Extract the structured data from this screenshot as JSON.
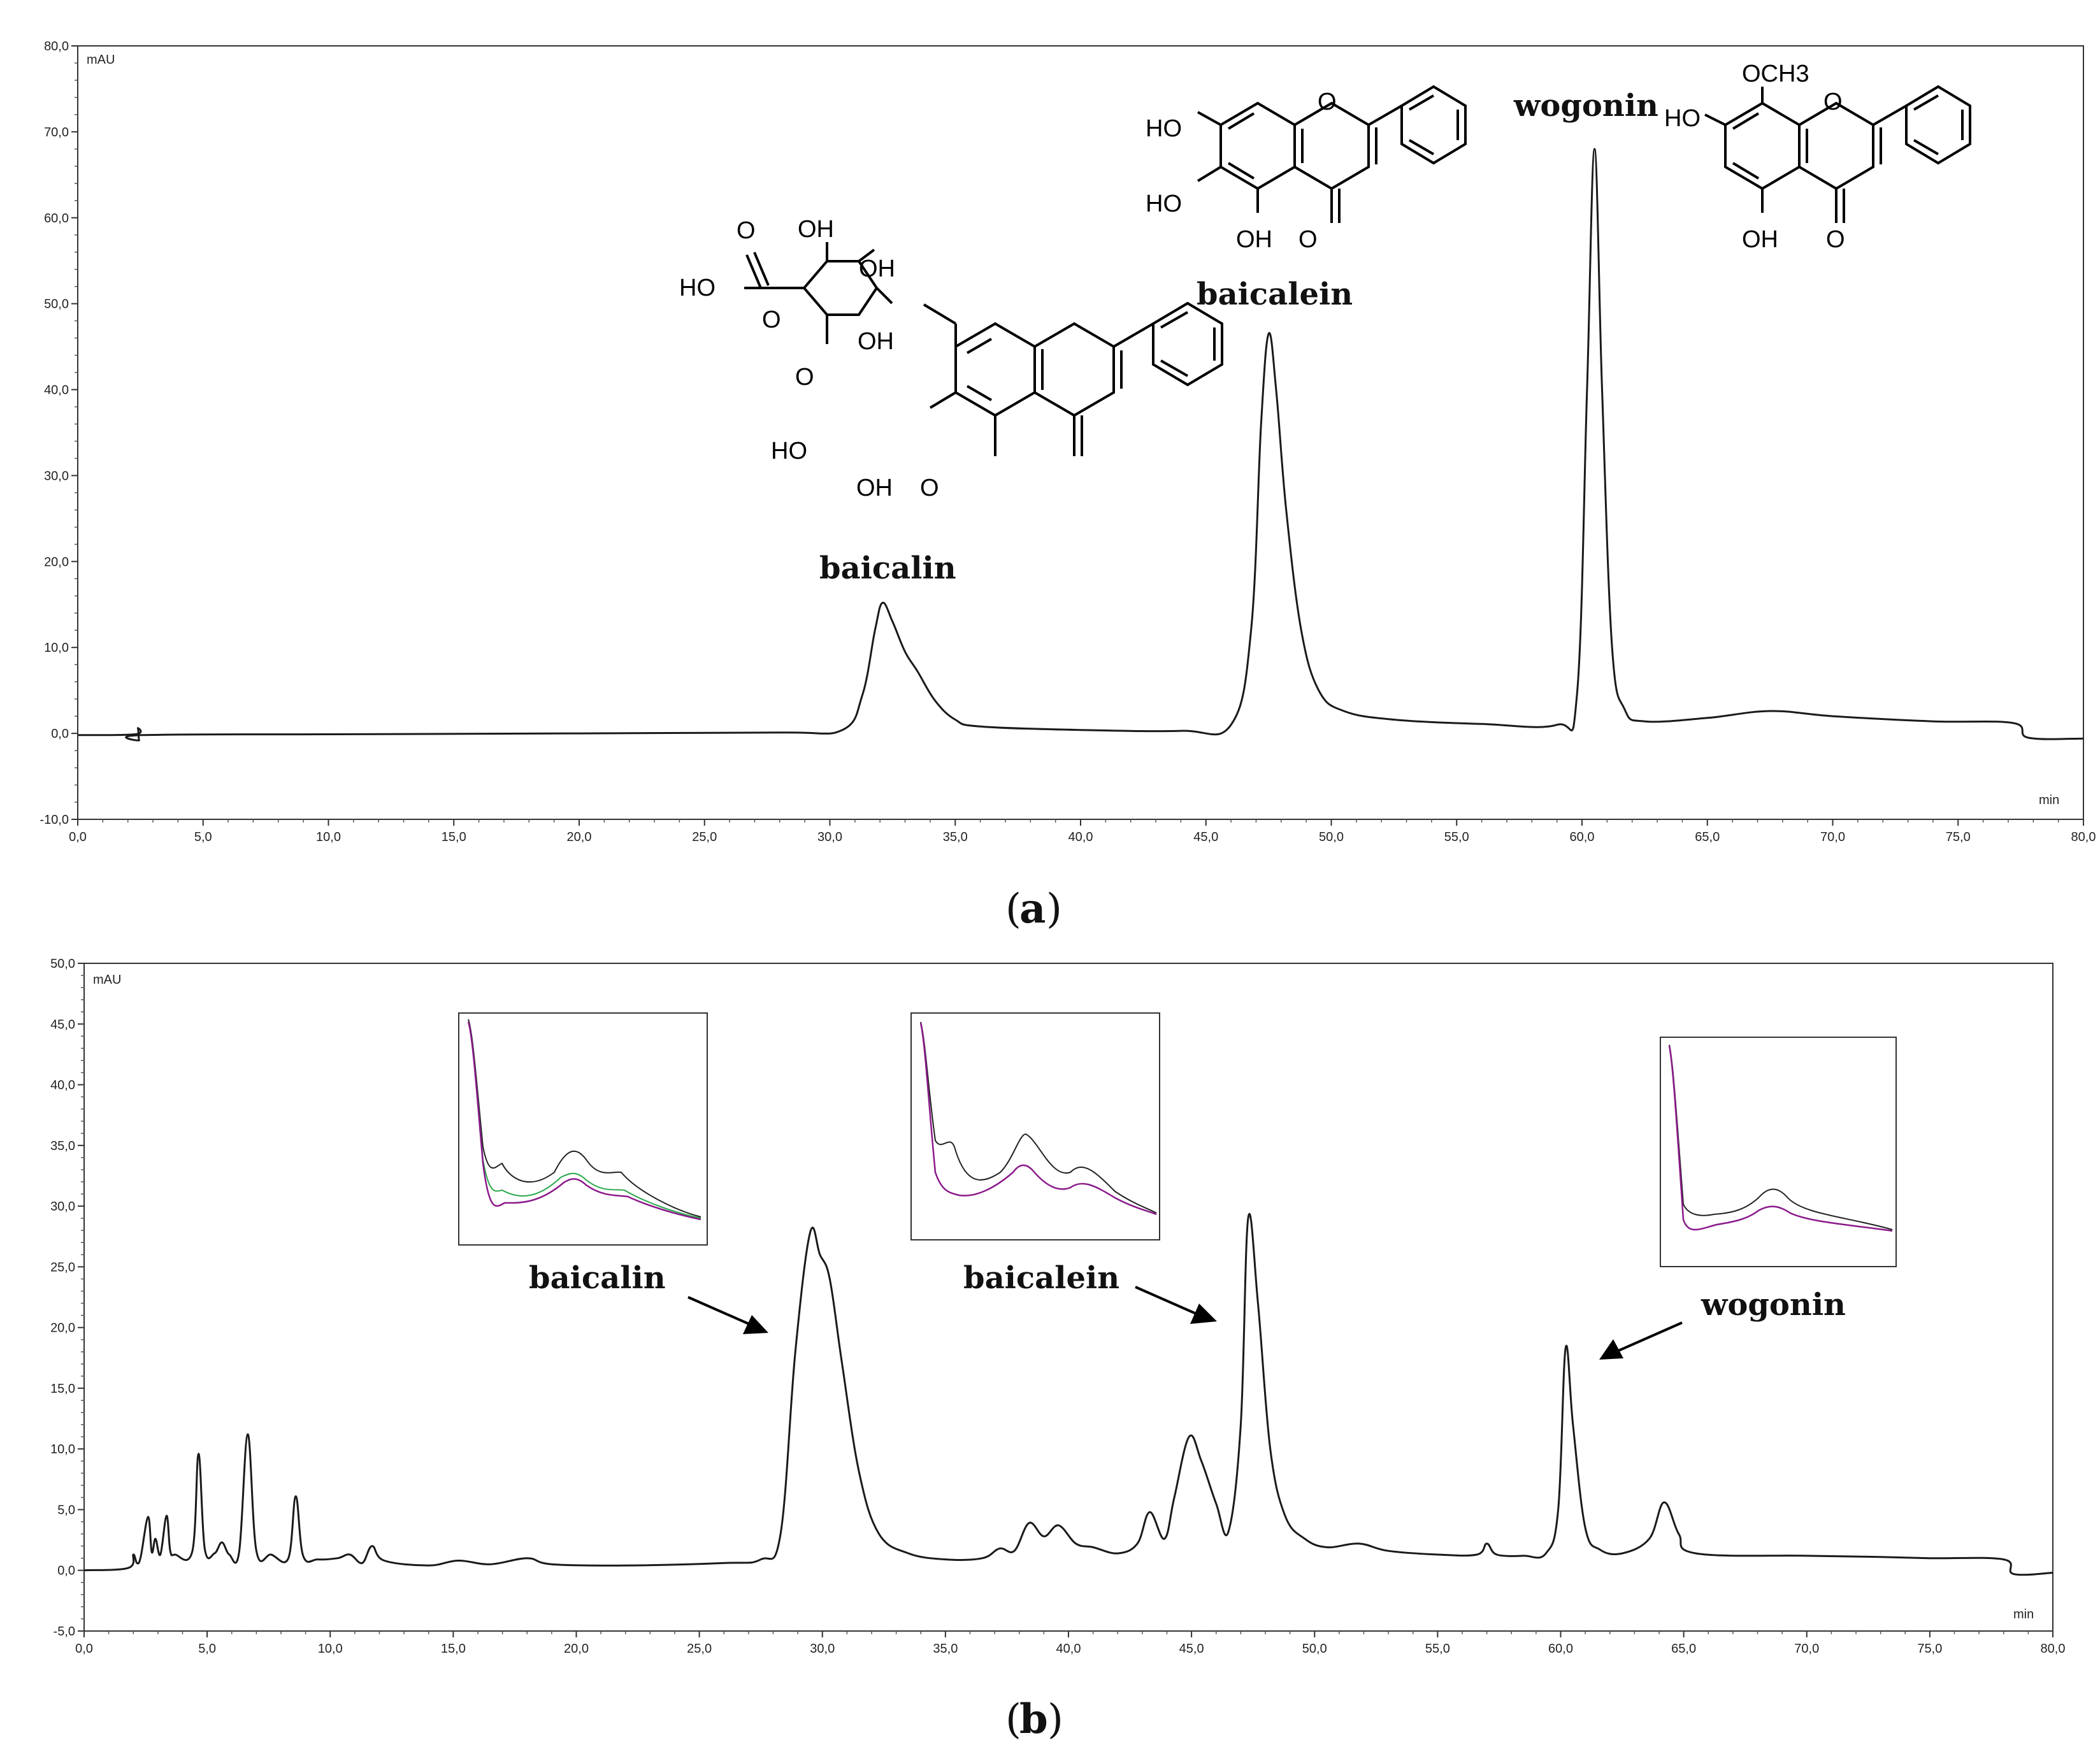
{
  "chart_data": [
    {
      "type": "line",
      "panel_label": "a",
      "ylabel": "mAU",
      "xlabel": "min",
      "xlim": [
        0,
        80
      ],
      "ylim": [
        -10,
        80
      ],
      "x_ticks": [
        "0,0",
        "5,0",
        "10,0",
        "15,0",
        "20,0",
        "25,0",
        "30,0",
        "35,0",
        "40,0",
        "45,0",
        "50,0",
        "55,0",
        "60,0",
        "65,0",
        "70,0",
        "75,0",
        "80,0"
      ],
      "y_ticks": [
        "-10,0",
        "0,0",
        "10,0",
        "20,0",
        "30,0",
        "40,0",
        "50,0",
        "60,0",
        "70,0",
        "80,0"
      ],
      "grid": false,
      "peaks": [
        {
          "name": "baicalin",
          "x": 32.1,
          "y": 15.2
        },
        {
          "name": "baicalein",
          "x": 47.5,
          "y": 46.5
        },
        {
          "name": "wogonin",
          "x": 60.5,
          "y": 68.0
        }
      ],
      "series": [
        {
          "x": [
            0,
            2.3,
            2.4,
            2.45,
            2.55,
            10,
            20,
            28,
            30.5,
            31.3,
            31.8,
            32.1,
            32.5,
            33.0,
            33.5,
            34.2,
            35.0,
            36.0,
            40,
            44,
            46.0,
            46.8,
            47.2,
            47.5,
            47.8,
            48.2,
            48.8,
            49.5,
            50.5,
            52.5,
            56,
            59.0,
            59.8,
            60.2,
            60.5,
            60.8,
            61.2,
            61.7,
            62.5,
            65,
            67.5,
            70,
            74,
            77.2,
            77.8,
            80
          ],
          "y": [
            -0.2,
            -0.1,
            0.6,
            -0.8,
            -0.2,
            -0.1,
            0.0,
            0.1,
            0.4,
            4.5,
            12.0,
            15.2,
            13.0,
            9.5,
            7.2,
            3.8,
            1.6,
            0.8,
            0.4,
            0.3,
            1.0,
            12.0,
            36.0,
            46.5,
            40.0,
            26.0,
            12.0,
            5.0,
            2.6,
            1.6,
            1.1,
            1.0,
            4.5,
            40.0,
            68.0,
            40.0,
            10.0,
            2.8,
            1.4,
            1.8,
            2.6,
            2.0,
            1.4,
            1.2,
            -0.5,
            -0.6
          ]
        }
      ]
    },
    {
      "type": "line",
      "panel_label": "b",
      "ylabel": "mAU",
      "xlabel": "min",
      "xlim": [
        0,
        80
      ],
      "ylim": [
        -5,
        50
      ],
      "x_ticks": [
        "0,0",
        "5,0",
        "10,0",
        "15,0",
        "20,0",
        "25,0",
        "30,0",
        "35,0",
        "40,0",
        "45,0",
        "50,0",
        "55,0",
        "60,0",
        "65,0",
        "70,0",
        "75,0",
        "80,0"
      ],
      "y_ticks": [
        "-5,0",
        "0,0",
        "5,0",
        "10,0",
        "15,0",
        "20,0",
        "25,0",
        "30,0",
        "35,0",
        "40,0",
        "45,0",
        "50,0"
      ],
      "grid": false,
      "peaks": [
        {
          "name": "baicalin",
          "x": 29.5,
          "y": 27.8
        },
        {
          "name": "baicalein",
          "x": 47.3,
          "y": 29.0
        },
        {
          "name": "wogonin",
          "x": 60.2,
          "y": 18.3
        }
      ],
      "series": [
        {
          "x": [
            0,
            1.8,
            2.0,
            2.15,
            2.3,
            2.6,
            2.75,
            2.9,
            3.1,
            3.35,
            3.5,
            3.7,
            4.4,
            4.65,
            4.9,
            5.3,
            5.6,
            5.9,
            6.3,
            6.65,
            7.0,
            7.6,
            8.3,
            8.6,
            8.9,
            9.5,
            10.3,
            10.8,
            11.3,
            11.7,
            12.2,
            14,
            15.2,
            16.5,
            18.0,
            19.0,
            22,
            26,
            27.5,
            28.3,
            28.9,
            29.5,
            29.9,
            30.3,
            30.8,
            31.5,
            32.3,
            33.5,
            35,
            36.5,
            37.2,
            37.8,
            38.4,
            39.0,
            39.6,
            40.3,
            41.0,
            42.0,
            42.8,
            43.3,
            43.9,
            44.3,
            44.9,
            45.4,
            46.0,
            46.5,
            47.0,
            47.3,
            47.7,
            48.2,
            48.8,
            49.6,
            50.5,
            51.8,
            53,
            55,
            56.6,
            57.0,
            57.4,
            58.5,
            59.4,
            59.9,
            60.2,
            60.5,
            61.0,
            61.6,
            62.5,
            63.6,
            64.2,
            64.8,
            65.5,
            70,
            73,
            75,
            78.0,
            78.4,
            80
          ],
          "y": [
            0.0,
            0.2,
            1.3,
            0.6,
            1.1,
            4.4,
            1.5,
            2.6,
            1.3,
            4.5,
            1.6,
            1.3,
            1.6,
            9.6,
            1.8,
            1.4,
            2.3,
            1.3,
            1.5,
            11.2,
            1.6,
            1.3,
            1.0,
            6.1,
            1.2,
            0.9,
            1.0,
            1.3,
            0.6,
            2.0,
            0.8,
            0.4,
            0.8,
            0.5,
            1.0,
            0.5,
            0.4,
            0.6,
            0.9,
            3.0,
            18.0,
            27.8,
            26.0,
            24.0,
            17.0,
            8.0,
            3.0,
            1.4,
            0.9,
            1.0,
            1.8,
            1.6,
            3.9,
            2.8,
            3.7,
            2.2,
            1.9,
            1.4,
            2.2,
            4.8,
            2.6,
            6.0,
            11.0,
            9.0,
            5.5,
            3.2,
            12.0,
            29.0,
            22.0,
            10.0,
            4.5,
            2.6,
            1.9,
            2.2,
            1.6,
            1.3,
            1.3,
            2.2,
            1.3,
            1.2,
            1.4,
            5.0,
            18.3,
            12.0,
            3.5,
            1.7,
            1.4,
            2.6,
            5.6,
            3.0,
            1.4,
            1.2,
            1.1,
            1.0,
            0.9,
            -0.3,
            -0.2
          ]
        }
      ],
      "insets": [
        {
          "name": "baicalin-uv-spectrum"
        },
        {
          "name": "baicalein-uv-spectrum"
        },
        {
          "name": "wogonin-uv-spectrum"
        }
      ]
    }
  ],
  "colors": {
    "trace": "#1a1a1a",
    "axis": "#333333",
    "spectrum_purple": "#8b1a8b",
    "spectrum_green": "#2aa84a"
  },
  "structures": {
    "baicalin": {
      "labels": [
        "OH",
        "O",
        "HO",
        "O",
        "OH",
        "O",
        "HO",
        "OH",
        "O",
        "OH"
      ]
    },
    "baicalein": {
      "labels": [
        "HO",
        "HO",
        "OH",
        "O",
        "O"
      ]
    },
    "wogonin": {
      "labels": [
        "OCH3",
        "HO",
        "OH",
        "O",
        "O"
      ]
    }
  }
}
